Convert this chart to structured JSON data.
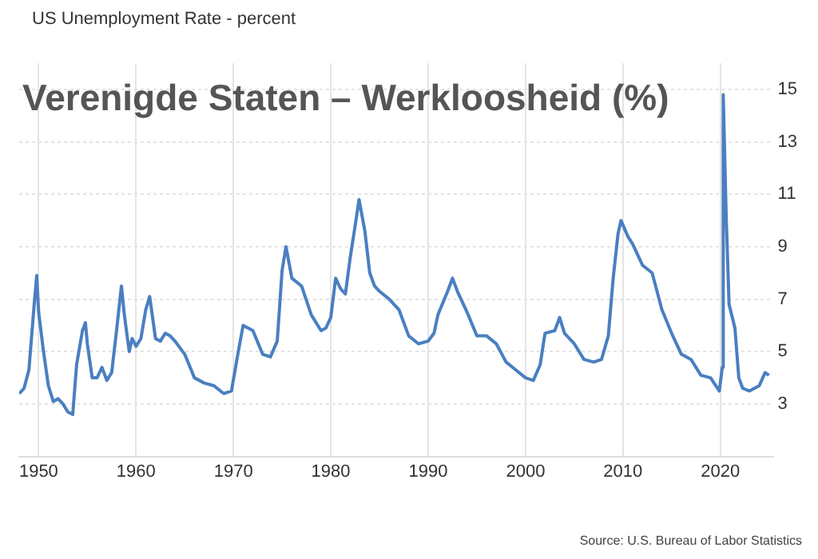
{
  "chart_data": {
    "type": "line",
    "title": "Verenigde Staten – Werkloosheid (%)",
    "subtitle": "US Unemployment Rate - percent",
    "annotations": [
      "Source: U.S. Bureau of Labor Statistics"
    ],
    "series": [
      {
        "color": "#4a7fc1",
        "x": [
          1948.0,
          1948.5,
          1949.0,
          1949.5,
          1949.8,
          1950.0,
          1950.5,
          1951.0,
          1951.5,
          1952.0,
          1952.5,
          1953.0,
          1953.5,
          1953.9,
          1954.5,
          1954.8,
          1955.0,
          1955.5,
          1956.0,
          1956.5,
          1957.0,
          1957.5,
          1958.0,
          1958.5,
          1958.8,
          1959.3,
          1959.6,
          1960.0,
          1960.5,
          1961.0,
          1961.4,
          1962.0,
          1962.5,
          1963.0,
          1963.5,
          1964.0,
          1965.0,
          1966.0,
          1967.0,
          1968.0,
          1969.0,
          1969.8,
          1970.5,
          1971.0,
          1972.0,
          1973.0,
          1973.8,
          1974.5,
          1975.0,
          1975.4,
          1976.0,
          1977.0,
          1978.0,
          1979.0,
          1979.5,
          1980.0,
          1980.5,
          1981.0,
          1981.5,
          1982.0,
          1982.5,
          1982.9,
          1983.5,
          1984.0,
          1984.5,
          1985.0,
          1986.0,
          1987.0,
          1988.0,
          1989.0,
          1990.0,
          1990.6,
          1991.0,
          1992.0,
          1992.5,
          1993.0,
          1994.0,
          1995.0,
          1996.0,
          1997.0,
          1998.0,
          1999.0,
          2000.0,
          2000.8,
          2001.5,
          2002.0,
          2003.0,
          2003.5,
          2004.0,
          2005.0,
          2006.0,
          2007.0,
          2007.8,
          2008.5,
          2009.0,
          2009.5,
          2009.8,
          2010.5,
          2011.0,
          2012.0,
          2013.0,
          2014.0,
          2015.0,
          2016.0,
          2017.0,
          2018.0,
          2019.0,
          2019.9,
          2020.2,
          2020.3,
          2020.6,
          2020.9,
          2021.5,
          2021.9,
          2022.3,
          2023.0,
          2023.5,
          2024.0,
          2024.6,
          2025.0
        ],
        "values": [
          3.4,
          3.6,
          4.3,
          6.6,
          7.9,
          6.5,
          5.0,
          3.7,
          3.1,
          3.2,
          3.0,
          2.7,
          2.6,
          4.5,
          5.8,
          6.1,
          5.3,
          4.0,
          4.0,
          4.4,
          3.9,
          4.2,
          5.8,
          7.5,
          6.4,
          5.0,
          5.5,
          5.2,
          5.5,
          6.6,
          7.1,
          5.5,
          5.4,
          5.7,
          5.6,
          5.4,
          4.9,
          4.0,
          3.8,
          3.7,
          3.4,
          3.5,
          5.0,
          6.0,
          5.8,
          4.9,
          4.8,
          5.4,
          8.1,
          9.0,
          7.8,
          7.5,
          6.4,
          5.8,
          5.9,
          6.3,
          7.8,
          7.4,
          7.2,
          8.6,
          9.8,
          10.8,
          9.6,
          8.0,
          7.5,
          7.3,
          7.0,
          6.6,
          5.6,
          5.3,
          5.4,
          5.7,
          6.4,
          7.3,
          7.8,
          7.3,
          6.5,
          5.6,
          5.6,
          5.3,
          4.6,
          4.3,
          4.0,
          3.9,
          4.5,
          5.7,
          5.8,
          6.3,
          5.7,
          5.3,
          4.7,
          4.6,
          4.7,
          5.6,
          7.8,
          9.5,
          10.0,
          9.4,
          9.1,
          8.3,
          8.0,
          6.6,
          5.7,
          4.9,
          4.7,
          4.1,
          4.0,
          3.5,
          4.4,
          14.8,
          10.2,
          6.8,
          5.9,
          4.0,
          3.6,
          3.5,
          3.6,
          3.7,
          4.2,
          4.1
        ]
      }
    ],
    "xlim": [
      1948,
      2025.4
    ],
    "xticks": [
      1950,
      1960,
      1970,
      1980,
      1990,
      2000,
      2010,
      2020
    ],
    "ylim": [
      1,
      16
    ],
    "yticks": [
      3,
      5,
      7,
      9,
      11,
      13,
      15
    ],
    "grid": true,
    "legend": false,
    "marker": "none",
    "line_style": "solid"
  }
}
